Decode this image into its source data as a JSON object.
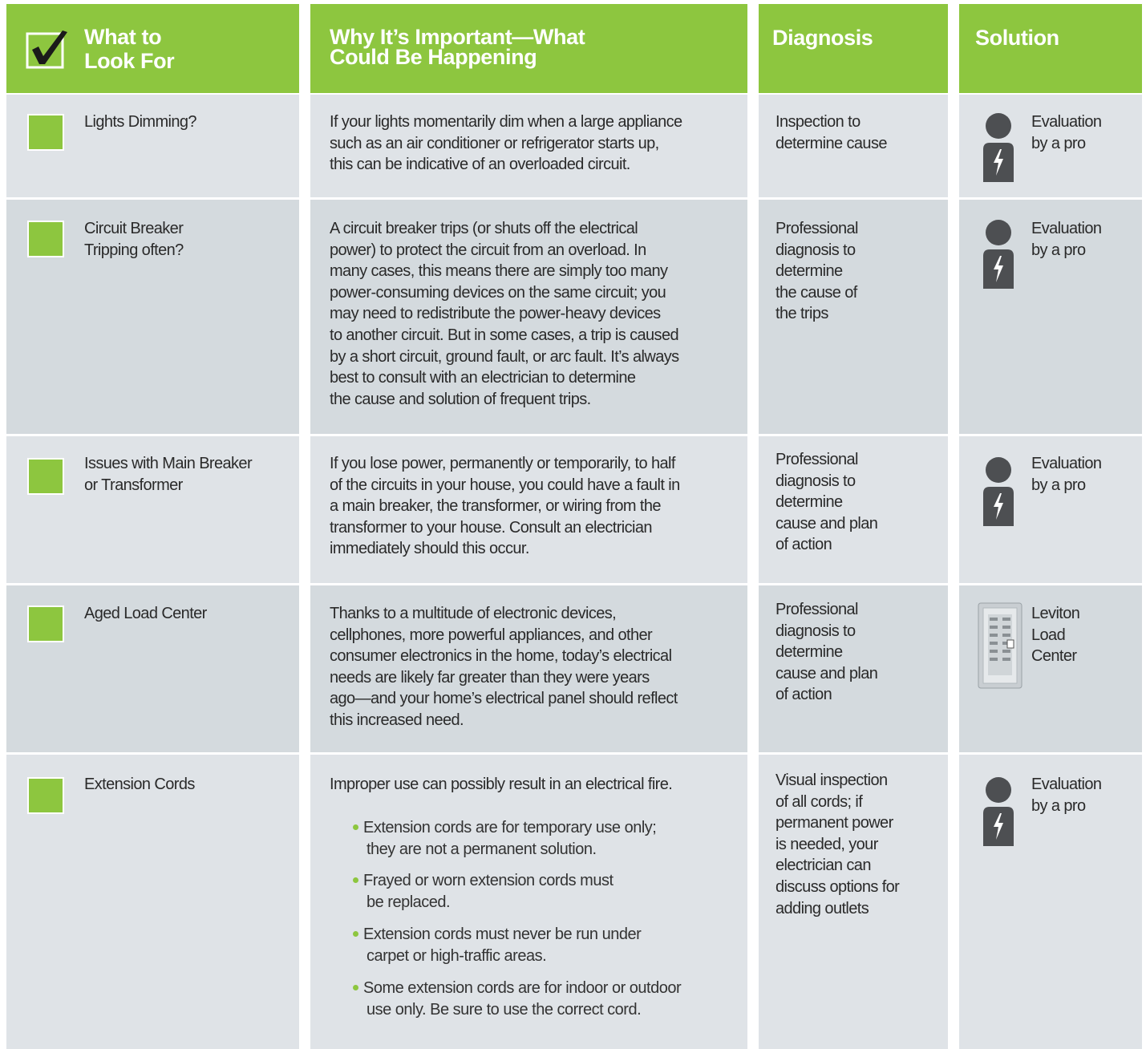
{
  "header": {
    "columns": [
      [
        "What to",
        "Look For"
      ],
      [
        "Why It’s Important—What",
        "Could Be Happening"
      ],
      [
        "Diagnosis"
      ],
      [
        "Solution"
      ]
    ]
  },
  "rows": [
    {
      "look_for": [
        "Lights Dimming?"
      ],
      "why": [
        "If your lights momentarily dim when a large appliance",
        "such as an air conditioner or refrigerator starts up,",
        "this can be indicative of an overloaded circuit."
      ],
      "diagnosis": [
        "Inspection to",
        "determine cause"
      ],
      "solution": [
        "Evaluation",
        "by a pro"
      ]
    },
    {
      "look_for": [
        "Circuit Breaker",
        "Tripping often?"
      ],
      "why": [
        "A circuit breaker trips (or shuts off the electrical",
        "power) to protect the circuit from an overload. In",
        "many cases, this means there are simply too many",
        "power-consuming devices on the same circuit; you",
        "may need to redistribute the power-heavy devices",
        "to another circuit. But in some cases, a trip is caused",
        "by a short circuit, ground fault, or arc fault. It’s always",
        "best to consult with an electrician to determine",
        "the cause and solution of frequent trips."
      ],
      "diagnosis": [
        "Professional",
        "diagnosis to",
        "determine",
        "the cause of",
        "the trips"
      ],
      "solution": [
        "Evaluation",
        "by a pro"
      ]
    },
    {
      "look_for": [
        "Issues with Main Breaker",
        "or Transformer"
      ],
      "why": [
        "If you lose power, permanently or temporarily, to half",
        "of the circuits in your house, you could have a fault in",
        "a main breaker, the transformer, or wiring from the",
        "transformer to your house.  Consult an electrician",
        "immediately should this occur."
      ],
      "diagnosis": [
        "Professional",
        "diagnosis to",
        "determine",
        "cause and plan",
        "of action"
      ],
      "solution": [
        "Evaluation",
        "by a pro"
      ]
    },
    {
      "look_for": [
        "Aged Load Center"
      ],
      "why": [
        "Thanks to a multitude of electronic devices,",
        "cellphones, more powerful appliances, and other",
        "consumer electronics in the home, today’s electrical",
        "needs are likely far greater than they were years",
        "ago—and your home’s electrical panel should reflect",
        "this increased need."
      ],
      "diagnosis": [
        "Professional",
        "diagnosis to",
        "determine",
        "cause and plan",
        "of action"
      ],
      "solution": [
        "Leviton",
        "Load",
        "Center"
      ]
    },
    {
      "look_for": [
        "Extension Cords"
      ],
      "why": [
        "Improper use can possibly result in an electrical fire."
      ],
      "bullets": [
        [
          "Extension cords are for temporary use only;",
          "they are not a permanent solution."
        ],
        [
          "Frayed or worn extension cords must",
          "be replaced."
        ],
        [
          "Extension cords must never be run under",
          "carpet or high-traffic areas."
        ],
        [
          "Some extension cords are for indoor or outdoor",
          "use only. Be sure to use the correct cord."
        ]
      ],
      "diagnosis": [
        "Visual inspection",
        "of all cords; if",
        "permanent power",
        "is needed, your",
        "electrician can",
        "discuss options for",
        "adding outlets"
      ],
      "solution": [
        "Evaluation",
        "by a pro"
      ]
    }
  ]
}
